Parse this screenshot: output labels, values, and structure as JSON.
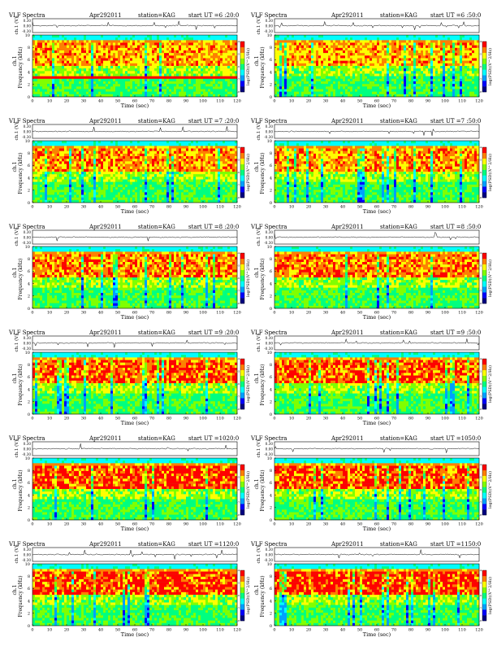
{
  "page": {
    "background": "#ffffff"
  },
  "colormap": {
    "colors": [
      "#000080",
      "#0000ff",
      "#00a0ff",
      "#00ffff",
      "#00ff80",
      "#80ff00",
      "#ffff00",
      "#ff8000",
      "#ff0000"
    ]
  },
  "chart_data": [
    {
      "type": "heatmap",
      "header": {
        "title": "VLF Spectra",
        "date": "Apr292011",
        "station": "station=KAG",
        "start": "start UT =6 :20:0"
      },
      "ch_label": "ch.1 (V)",
      "ch_ticks": [
        "0.30",
        "0.00",
        "-0.30"
      ],
      "ylabel": "Frequency (kHz)",
      "ylabel_ch": "ch.1",
      "y_ticks": [
        "0",
        "2",
        "4",
        "6",
        "8",
        "10"
      ],
      "xlabel": "Time (sec)",
      "x_ticks": [
        "0",
        "10",
        "20",
        "30",
        "40",
        "50",
        "60",
        "70",
        "80",
        "90",
        "100",
        "110",
        "120"
      ],
      "cbar_label": "log(PSD)(V^2/Hz)",
      "cbar_ticks": [
        "-4",
        "-5",
        "-6",
        "-7",
        "-8"
      ],
      "xlim": [
        0,
        120
      ],
      "ylim": [
        0,
        10
      ],
      "hum_band_khz": 3.0
    },
    {
      "type": "heatmap",
      "header": {
        "title": "VLF Spectra",
        "date": "Apr292011",
        "station": "station=KAG",
        "start": "start UT =6 :50:0"
      },
      "ch_label": "ch.1 (V)",
      "ch_ticks": [
        "0.30",
        "0.00",
        "-0.30"
      ],
      "ylabel": "Frequency (kHz)",
      "ylabel_ch": "ch.1",
      "y_ticks": [
        "0",
        "2",
        "4",
        "6",
        "8",
        "10"
      ],
      "xlabel": "Time (sec)",
      "x_ticks": [
        "0",
        "10",
        "20",
        "30",
        "40",
        "50",
        "60",
        "70",
        "80",
        "90",
        "100",
        "110",
        "120"
      ],
      "cbar_label": "log(PSD)(V^2/Hz)",
      "cbar_ticks": [
        "-4",
        "-5",
        "-6",
        "-7",
        "-8"
      ],
      "xlim": [
        0,
        120
      ],
      "ylim": [
        0,
        10
      ]
    },
    {
      "type": "heatmap",
      "header": {
        "title": "VLF Spectra",
        "date": "Apr292011",
        "station": "station=KAG",
        "start": "start UT =7 :20:0"
      },
      "ch_label": "ch.1 (V)",
      "ch_ticks": [
        "0.30",
        "0.00",
        "-0.30"
      ],
      "ylabel": "Frequency (kHz)",
      "ylabel_ch": "ch.1",
      "y_ticks": [
        "0",
        "2",
        "4",
        "6",
        "8",
        "10"
      ],
      "xlabel": "Time (sec)",
      "x_ticks": [
        "0",
        "10",
        "20",
        "30",
        "40",
        "50",
        "60",
        "70",
        "80",
        "90",
        "100",
        "110",
        "120"
      ],
      "cbar_label": "log(PSD)(V^2/Hz)",
      "cbar_ticks": [
        "-4",
        "-5",
        "-6",
        "-7",
        "-8"
      ],
      "xlim": [
        0,
        120
      ],
      "ylim": [
        0,
        10
      ]
    },
    {
      "type": "heatmap",
      "header": {
        "title": "VLF Spectra",
        "date": "Apr292011",
        "station": "station=KAG",
        "start": "start UT =7 :50:0"
      },
      "ch_label": "ch.1 (V)",
      "ch_ticks": [
        "0.30",
        "0.00",
        "-0.30"
      ],
      "ylabel": "Frequency (kHz)",
      "ylabel_ch": "ch.1",
      "y_ticks": [
        "0",
        "2",
        "4",
        "6",
        "8",
        "10"
      ],
      "xlabel": "Time (sec)",
      "x_ticks": [
        "0",
        "10",
        "20",
        "30",
        "40",
        "50",
        "60",
        "70",
        "80",
        "90",
        "100",
        "110",
        "120"
      ],
      "cbar_label": "log(PSD)(V^2/Hz)",
      "cbar_ticks": [
        "-4",
        "-5",
        "-6",
        "-7",
        "-8"
      ],
      "xlim": [
        0,
        120
      ],
      "ylim": [
        0,
        10
      ]
    },
    {
      "type": "heatmap",
      "header": {
        "title": "VLF Spectra",
        "date": "Apr292011",
        "station": "station=KAG",
        "start": "start UT =8 :20:0"
      },
      "ch_label": "ch.1 (V)",
      "ch_ticks": [
        "0.30",
        "0.00",
        "-0.30"
      ],
      "ylabel": "Frequency (kHz)",
      "ylabel_ch": "ch.1",
      "y_ticks": [
        "0",
        "2",
        "4",
        "6",
        "8",
        "10"
      ],
      "xlabel": "Time (sec)",
      "x_ticks": [
        "0",
        "10",
        "20",
        "30",
        "40",
        "50",
        "60",
        "70",
        "80",
        "90",
        "100",
        "110",
        "120"
      ],
      "cbar_label": "log(PSD)(V^2/Hz)",
      "cbar_ticks": [
        "-4",
        "-5",
        "-6",
        "-7",
        "-8"
      ],
      "xlim": [
        0,
        120
      ],
      "ylim": [
        0,
        10
      ]
    },
    {
      "type": "heatmap",
      "header": {
        "title": "VLF Spectra",
        "date": "Apr292011",
        "station": "station=KAG",
        "start": "start UT =8 :50:0"
      },
      "ch_label": "ch.1 (V)",
      "ch_ticks": [
        "0.30",
        "0.00",
        "-0.30"
      ],
      "ylabel": "Frequency (kHz)",
      "ylabel_ch": "ch.1",
      "y_ticks": [
        "0",
        "2",
        "4",
        "6",
        "8",
        "10"
      ],
      "xlabel": "Time (sec)",
      "x_ticks": [
        "0",
        "10",
        "20",
        "30",
        "40",
        "50",
        "60",
        "70",
        "80",
        "90",
        "100",
        "110",
        "120"
      ],
      "cbar_label": "log(PSD)(V^2/Hz)",
      "cbar_ticks": [
        "-4",
        "-5",
        "-6",
        "-7",
        "-8"
      ],
      "xlim": [
        0,
        120
      ],
      "ylim": [
        0,
        10
      ]
    },
    {
      "type": "heatmap",
      "header": {
        "title": "VLF Spectra",
        "date": "Apr292011",
        "station": "station=KAG",
        "start": "start UT =9 :20:0"
      },
      "ch_label": "ch.1 (V)",
      "ch_ticks": [
        "0.30",
        "0.00",
        "-0.30"
      ],
      "ylabel": "Frequency (kHz)",
      "ylabel_ch": "ch.1",
      "y_ticks": [
        "0",
        "2",
        "4",
        "6",
        "8",
        "10"
      ],
      "xlabel": "Time (sec)",
      "x_ticks": [
        "0",
        "10",
        "20",
        "30",
        "40",
        "50",
        "60",
        "70",
        "80",
        "90",
        "100",
        "110",
        "120"
      ],
      "cbar_label": "log(PSD)(V^2/Hz)",
      "cbar_ticks": [
        "-4",
        "-5",
        "-6",
        "-7",
        "-8"
      ],
      "xlim": [
        0,
        120
      ],
      "ylim": [
        0,
        10
      ]
    },
    {
      "type": "heatmap",
      "header": {
        "title": "VLF Spectra",
        "date": "Apr292011",
        "station": "station=KAG",
        "start": "start UT =9 :50:0"
      },
      "ch_label": "ch.1 (V)",
      "ch_ticks": [
        "0.30",
        "0.00",
        "-0.30"
      ],
      "ylabel": "Frequency (kHz)",
      "ylabel_ch": "ch.1",
      "y_ticks": [
        "0",
        "2",
        "4",
        "6",
        "8",
        "10"
      ],
      "xlabel": "Time (sec)",
      "x_ticks": [
        "0",
        "10",
        "20",
        "30",
        "40",
        "50",
        "60",
        "70",
        "80",
        "90",
        "100",
        "110",
        "120"
      ],
      "cbar_label": "log(PSD)(V^2/Hz)",
      "cbar_ticks": [
        "-4",
        "-5",
        "-6",
        "-7",
        "-8"
      ],
      "xlim": [
        0,
        120
      ],
      "ylim": [
        0,
        10
      ]
    },
    {
      "type": "heatmap",
      "header": {
        "title": "VLF Spectra",
        "date": "Apr292011",
        "station": "station=KAG",
        "start": "start UT =1020:0"
      },
      "ch_label": "ch.1 (V)",
      "ch_ticks": [
        "0.30",
        "0.00",
        "-0.30"
      ],
      "ylabel": "Frequency (kHz)",
      "ylabel_ch": "ch.1",
      "y_ticks": [
        "0",
        "2",
        "4",
        "6",
        "8",
        "10"
      ],
      "xlabel": "Time (sec)",
      "x_ticks": [
        "0",
        "10",
        "20",
        "30",
        "40",
        "50",
        "60",
        "70",
        "80",
        "90",
        "100",
        "110",
        "120"
      ],
      "cbar_label": "log(PSD)(V^2/Hz)",
      "cbar_ticks": [
        "-4",
        "-5",
        "-6",
        "-7",
        "-8"
      ],
      "xlim": [
        0,
        120
      ],
      "ylim": [
        0,
        10
      ]
    },
    {
      "type": "heatmap",
      "header": {
        "title": "VLF Spectra",
        "date": "Apr292011",
        "station": "station=KAG",
        "start": "start UT =1050:0"
      },
      "ch_label": "ch.1 (V)",
      "ch_ticks": [
        "0.30",
        "0.00",
        "-0.30"
      ],
      "ylabel": "Frequency (kHz)",
      "ylabel_ch": "ch.1",
      "y_ticks": [
        "0",
        "2",
        "4",
        "6",
        "8",
        "10"
      ],
      "xlabel": "Time (sec)",
      "x_ticks": [
        "0",
        "10",
        "20",
        "30",
        "40",
        "50",
        "60",
        "70",
        "80",
        "90",
        "100",
        "110",
        "120"
      ],
      "cbar_label": "log(PSD)(V^2/Hz)",
      "cbar_ticks": [
        "-4",
        "-5",
        "-6",
        "-7",
        "-8"
      ],
      "xlim": [
        0,
        120
      ],
      "ylim": [
        0,
        10
      ]
    },
    {
      "type": "heatmap",
      "header": {
        "title": "VLF Spectra",
        "date": "Apr292011",
        "station": "station=KAG",
        "start": "start UT =1120:0"
      },
      "ch_label": "ch.1 (V)",
      "ch_ticks": [
        "0.30",
        "0.00",
        "-0.30"
      ],
      "ylabel": "Frequency (kHz)",
      "ylabel_ch": "ch.1",
      "y_ticks": [
        "0",
        "2",
        "4",
        "6",
        "8",
        "10"
      ],
      "xlabel": "Time (sec)",
      "x_ticks": [
        "0",
        "10",
        "20",
        "30",
        "40",
        "50",
        "60",
        "70",
        "80",
        "90",
        "100",
        "110",
        "120"
      ],
      "cbar_label": "log(PSD)(V^2/Hz)",
      "cbar_ticks": [
        "-4",
        "-5",
        "-6",
        "-7",
        "-8"
      ],
      "xlim": [
        0,
        120
      ],
      "ylim": [
        0,
        10
      ]
    },
    {
      "type": "heatmap",
      "header": {
        "title": "VLF Spectra",
        "date": "Apr292011",
        "station": "station=KAG",
        "start": "start UT =1150:0"
      },
      "ch_label": "ch.1 (V)",
      "ch_ticks": [
        "0.30",
        "0.00",
        "-0.30"
      ],
      "ylabel": "Frequency (kHz)",
      "ylabel_ch": "ch.1",
      "y_ticks": [
        "0",
        "2",
        "4",
        "6",
        "8",
        "10"
      ],
      "xlabel": "Time (sec)",
      "x_ticks": [
        "0",
        "10",
        "20",
        "30",
        "40",
        "50",
        "60",
        "70",
        "80",
        "90",
        "100",
        "110",
        "120"
      ],
      "cbar_label": "log(PSD)(V^2/Hz)",
      "cbar_ticks": [
        "-4",
        "-5",
        "-6",
        "-7",
        "-8"
      ],
      "xlim": [
        0,
        120
      ],
      "ylim": [
        0,
        10
      ]
    }
  ]
}
